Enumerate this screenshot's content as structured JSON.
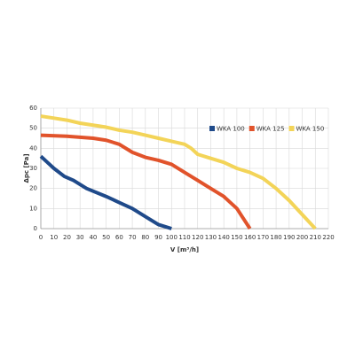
{
  "chart_data": {
    "type": "line",
    "xlabel": "V [m³/h]",
    "ylabel": "Δpc [Pa]",
    "xlim": [
      0,
      220
    ],
    "xticks": [
      0,
      10,
      20,
      30,
      40,
      50,
      60,
      70,
      80,
      90,
      100,
      110,
      120,
      130,
      140,
      150,
      160,
      170,
      180,
      190,
      200,
      210,
      220
    ],
    "ylim": [
      0,
      60
    ],
    "yticks": [
      0,
      10,
      20,
      30,
      40,
      50,
      60
    ],
    "grid": true,
    "legend": "upper right",
    "series": [
      {
        "name": "WKA 100",
        "color": "#1f4a8a",
        "x": [
          0,
          5,
          10,
          18,
          25,
          35,
          50,
          60,
          70,
          80,
          90,
          100
        ],
        "values": [
          36,
          33,
          30,
          26,
          24,
          20,
          16,
          13,
          10,
          6,
          2,
          0
        ]
      },
      {
        "name": "WKA 125",
        "color": "#e1532b",
        "x": [
          0,
          20,
          30,
          40,
          50,
          60,
          70,
          80,
          90,
          100,
          110,
          120,
          130,
          140,
          150,
          155,
          160
        ],
        "values": [
          46.5,
          46,
          45.5,
          45,
          44,
          42,
          38,
          35.5,
          34,
          32,
          28,
          24,
          20,
          16,
          10,
          5,
          0
        ]
      },
      {
        "name": "WKA 150",
        "color": "#f3d458",
        "x": [
          0,
          10,
          20,
          30,
          40,
          50,
          60,
          70,
          80,
          90,
          100,
          110,
          115,
          120,
          130,
          140,
          150,
          160,
          170,
          180,
          190,
          200,
          210
        ],
        "values": [
          56,
          55,
          54,
          52.5,
          51.5,
          50.5,
          49,
          48,
          46.5,
          45,
          43.5,
          42,
          40,
          37,
          35,
          33,
          30,
          28,
          25,
          20,
          14,
          7,
          0
        ]
      }
    ]
  }
}
